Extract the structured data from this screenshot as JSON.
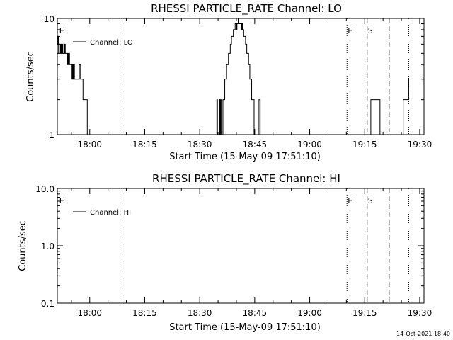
{
  "chart_data": [
    {
      "type": "line",
      "title": "RHESSI PARTICLE_RATE Channel: LO",
      "xlabel": "Start Time (15-May-09 17:51:10)",
      "ylabel": "Counts/sec",
      "y_scale": "log",
      "ylim": [
        1,
        10
      ],
      "xlim": [
        "17:51:10",
        "19:31:10"
      ],
      "y_ticks": [
        {
          "value": 1,
          "label": "1"
        },
        {
          "value": 10,
          "label": "10"
        }
      ],
      "x_ticks": [
        {
          "time": "18:00",
          "label": "18:00"
        },
        {
          "time": "18:15",
          "label": "18:15"
        },
        {
          "time": "18:30",
          "label": "18:30"
        },
        {
          "time": "18:45",
          "label": "18:45"
        },
        {
          "time": "19:00",
          "label": "19:00"
        },
        {
          "time": "19:15",
          "label": "19:15"
        },
        {
          "time": "19:30",
          "label": "19:30"
        }
      ],
      "legend": {
        "entry": "Channel: LO",
        "placement": "top-left"
      },
      "markers": [
        {
          "time": "17:51:30",
          "style": "none",
          "label": "E"
        },
        {
          "time": "18:08:50",
          "style": "dotted",
          "label": ""
        },
        {
          "time": "19:10:10",
          "style": "dotted",
          "label": "E"
        },
        {
          "time": "19:15:40",
          "style": "dashed",
          "label": "S"
        },
        {
          "time": "19:21:40",
          "style": "dashed",
          "label": ""
        },
        {
          "time": "19:27:00",
          "style": "dotted",
          "label": ""
        }
      ],
      "series": [
        {
          "name": "Channel: LO",
          "x": [
            "17:51:10",
            "17:51:20",
            "17:51:30",
            "17:51:40",
            "17:51:50",
            "17:52:00",
            "17:52:10",
            "17:52:20",
            "17:52:30",
            "17:52:40",
            "17:52:50",
            "17:53:00",
            "17:53:10",
            "17:53:20",
            "17:53:30",
            "17:53:40",
            "17:53:50",
            "17:54:00",
            "17:54:10",
            "17:54:20",
            "17:54:30",
            "17:54:40",
            "17:54:50",
            "17:55:00",
            "17:55:10",
            "17:55:20",
            "17:55:30",
            "17:55:40",
            "17:55:50",
            "17:56:00",
            "17:56:10",
            "17:56:20",
            "17:56:30",
            "17:56:40",
            "17:56:50",
            "17:57:00",
            "17:57:10",
            "17:57:20",
            "17:57:30",
            "17:57:40",
            "17:57:50",
            "17:58:00",
            "17:58:10",
            "17:58:20",
            "17:58:30",
            "17:58:40",
            "17:58:50",
            "17:59:00",
            "17:59:10",
            "17:59:20",
            "17:59:30",
            "17:59:40",
            "17:59:50",
            "18:00:00",
            "18:00:10"
          ],
          "values": [
            6,
            7,
            5,
            6,
            6,
            5,
            6,
            5,
            6,
            5,
            5,
            5,
            6,
            5,
            5,
            5,
            4,
            5,
            4,
            5,
            4,
            4,
            4,
            4,
            3,
            4,
            3,
            4,
            3,
            3,
            3,
            3,
            3,
            3,
            3,
            3,
            4,
            4,
            3,
            3,
            3,
            3,
            2,
            2,
            2,
            2,
            2,
            2,
            2,
            1,
            1,
            1,
            1,
            1,
            1
          ]
        },
        {
          "name": "Channel: LO",
          "x": [
            "18:34:30",
            "18:34:40",
            "18:34:50",
            "18:35:00",
            "18:35:10",
            "18:35:20",
            "18:35:30",
            "18:35:40",
            "18:35:50",
            "18:36:00",
            "18:36:10",
            "18:36:20",
            "18:36:30",
            "18:36:40",
            "18:36:50",
            "18:37:00",
            "18:37:10",
            "18:37:20",
            "18:37:30",
            "18:37:40",
            "18:37:50",
            "18:38:00",
            "18:38:10",
            "18:38:20",
            "18:38:30",
            "18:38:40",
            "18:38:50",
            "18:39:00",
            "18:39:10",
            "18:39:20",
            "18:39:30",
            "18:39:40",
            "18:39:50",
            "18:40:00",
            "18:40:10",
            "18:40:20",
            "18:40:30",
            "18:40:40",
            "18:40:50",
            "18:41:00",
            "18:41:10",
            "18:41:20",
            "18:41:30",
            "18:41:40",
            "18:41:50",
            "18:42:00",
            "18:42:10",
            "18:42:20",
            "18:42:30",
            "18:42:40",
            "18:42:50",
            "18:43:00",
            "18:43:10",
            "18:43:20",
            "18:43:30",
            "18:43:40",
            "18:43:50",
            "18:44:00",
            "18:44:10",
            "18:44:20",
            "18:44:30",
            "18:44:40",
            "18:44:50",
            "18:45:00",
            "18:45:10",
            "18:45:20",
            "18:45:30",
            "18:45:40",
            "18:45:50",
            "18:46:00",
            "18:46:10",
            "18:46:20",
            "18:46:30",
            "18:46:40",
            "18:46:50",
            "18:47:00",
            "18:47:10",
            "18:47:20"
          ],
          "values": [
            1,
            2,
            1,
            1,
            1,
            2,
            1,
            2,
            1,
            1,
            1,
            2,
            2,
            2,
            3,
            3,
            3,
            4,
            4,
            4,
            5,
            5,
            5,
            6,
            6,
            7,
            7,
            7,
            8,
            8,
            8,
            9,
            9,
            8,
            9,
            9,
            10,
            9,
            9,
            9,
            9,
            8,
            9,
            8,
            8,
            7,
            7,
            7,
            6,
            6,
            5,
            5,
            5,
            4,
            4,
            3,
            3,
            3,
            2,
            2,
            2,
            2,
            1,
            1,
            1,
            1,
            1,
            1,
            1,
            1,
            2,
            2,
            1,
            1,
            1,
            1,
            1,
            1
          ]
        },
        {
          "name": "Channel: LO",
          "x": [
            "19:16:10",
            "19:16:20",
            "19:16:30",
            "19:16:40",
            "19:16:50",
            "19:17:00",
            "19:17:10",
            "19:17:20",
            "19:17:30",
            "19:17:40",
            "19:17:50",
            "19:18:00",
            "19:18:10",
            "19:18:20",
            "19:18:30",
            "19:18:40",
            "19:18:50",
            "19:19:00",
            "19:19:10",
            "19:19:20",
            "19:19:30"
          ],
          "values": [
            1,
            1,
            1,
            2,
            2,
            2,
            2,
            2,
            2,
            2,
            2,
            2,
            2,
            2,
            2,
            2,
            2,
            2,
            1,
            1,
            1
          ]
        },
        {
          "name": "Channel: LO",
          "x": [
            "19:24:30",
            "19:24:40",
            "19:24:50",
            "19:25:00",
            "19:25:10",
            "19:25:20",
            "19:25:30",
            "19:25:40",
            "19:25:50",
            "19:26:00",
            "19:26:10",
            "19:26:20",
            "19:26:30",
            "19:26:40",
            "19:26:50",
            "19:27:00"
          ],
          "values": [
            1,
            1,
            1,
            1,
            1,
            1,
            2,
            2,
            2,
            2,
            2,
            2,
            2,
            2,
            2,
            3
          ]
        }
      ]
    },
    {
      "type": "line",
      "title": "RHESSI PARTICLE_RATE Channel: HI",
      "xlabel": "Start Time (15-May-09 17:51:10)",
      "ylabel": "Counts/sec",
      "y_scale": "log",
      "ylim": [
        0.1,
        10
      ],
      "xlim": [
        "17:51:10",
        "19:31:10"
      ],
      "y_ticks": [
        {
          "value": 0.1,
          "label": "0.1"
        },
        {
          "value": 1,
          "label": "1.0"
        },
        {
          "value": 10,
          "label": "10.0"
        }
      ],
      "x_ticks": [
        {
          "time": "18:00",
          "label": "18:00"
        },
        {
          "time": "18:15",
          "label": "18:15"
        },
        {
          "time": "18:30",
          "label": "18:30"
        },
        {
          "time": "18:45",
          "label": "18:45"
        },
        {
          "time": "19:00",
          "label": "19:00"
        },
        {
          "time": "19:15",
          "label": "19:15"
        },
        {
          "time": "19:30",
          "label": "19:30"
        }
      ],
      "legend": {
        "entry": "Channel: HI",
        "placement": "top-left"
      },
      "markers": [
        {
          "time": "17:51:30",
          "style": "none",
          "label": "E"
        },
        {
          "time": "18:08:50",
          "style": "dotted",
          "label": ""
        },
        {
          "time": "19:10:10",
          "style": "dotted",
          "label": "E"
        },
        {
          "time": "19:15:40",
          "style": "dashed",
          "label": "S"
        },
        {
          "time": "19:21:40",
          "style": "dashed",
          "label": ""
        },
        {
          "time": "19:27:00",
          "style": "dotted",
          "label": ""
        }
      ],
      "series": []
    }
  ],
  "footer": {
    "timestamp": "14-Oct-2021 18:40"
  }
}
